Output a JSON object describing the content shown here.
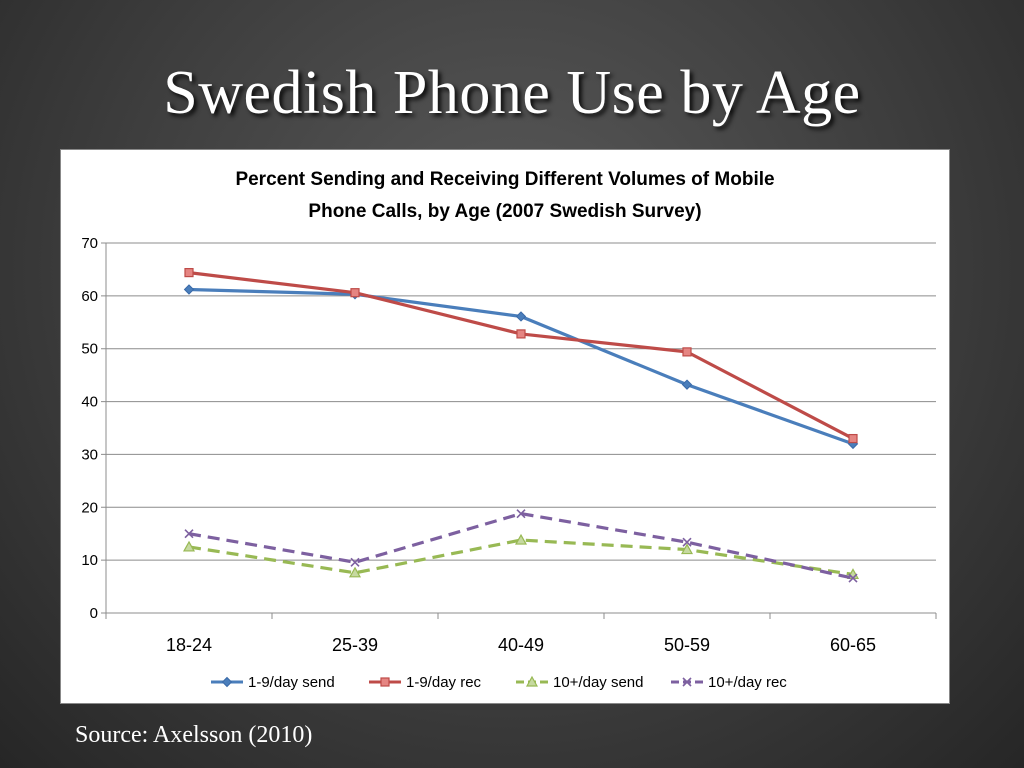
{
  "slide": {
    "title": "Swedish Phone Use by Age",
    "source": "Source: Axelsson (2010)"
  },
  "chart_data": {
    "type": "line",
    "title_line1": "Percent Sending and Receiving Different Volumes of Mobile",
    "title_line2": "Phone Calls, by Age (2007 Swedish Survey)",
    "categories": [
      "18-24",
      "25-39",
      "40-49",
      "50-59",
      "60-65"
    ],
    "ylim": [
      0,
      70
    ],
    "yticks": [
      "0",
      "10",
      "20",
      "30",
      "40",
      "50",
      "60",
      "70"
    ],
    "grid": true,
    "legend_position": "bottom",
    "series": [
      {
        "name": "1-9/day send",
        "values": [
          61.2,
          60.3,
          56.1,
          43.2,
          32.0
        ],
        "color": "#4a7ebb",
        "dash": "solid",
        "marker": "diamond"
      },
      {
        "name": "1-9/day rec",
        "values": [
          64.4,
          60.6,
          52.8,
          49.4,
          33.0
        ],
        "color": "#be4b48",
        "dash": "solid",
        "marker": "square"
      },
      {
        "name": "10+/day send",
        "values": [
          12.5,
          7.6,
          13.8,
          12.0,
          7.3
        ],
        "color": "#98b954",
        "dash": "dashed",
        "marker": "triangle"
      },
      {
        "name": "10+/day rec",
        "values": [
          15.0,
          9.6,
          18.8,
          13.4,
          6.6
        ],
        "color": "#7d60a0",
        "dash": "dashed",
        "marker": "x"
      }
    ]
  }
}
